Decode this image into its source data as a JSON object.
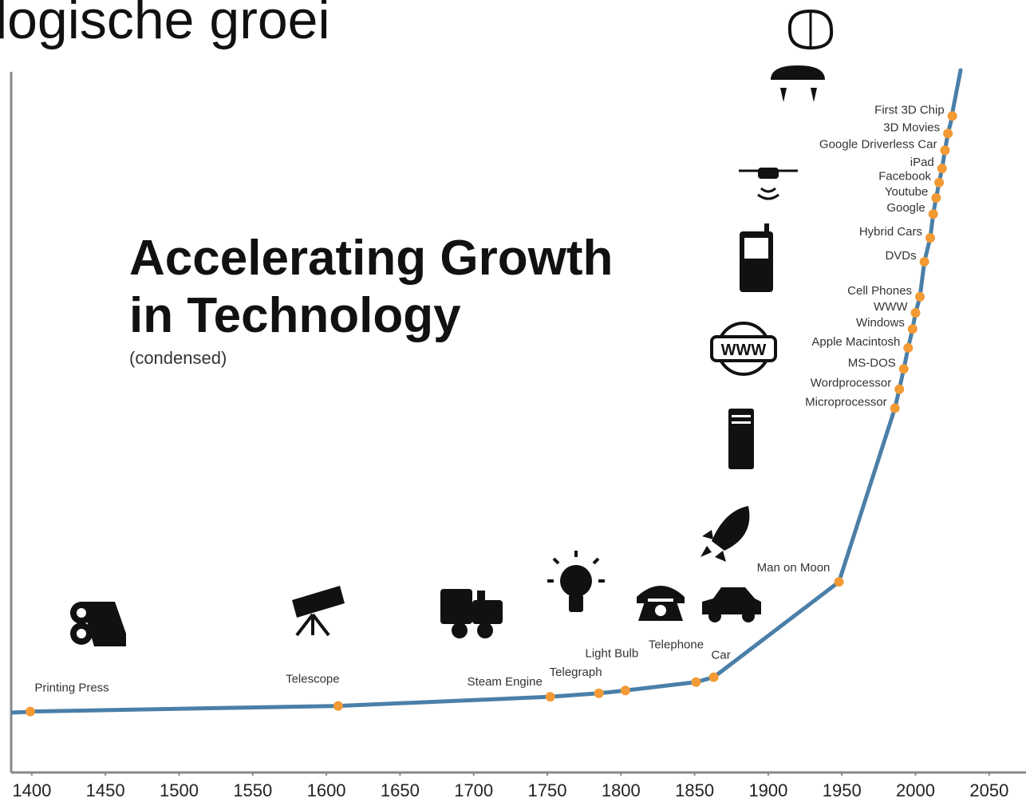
{
  "header": "logische groei",
  "chart_data": {
    "type": "line",
    "title": [
      "Accelerating Growth",
      "in Technology"
    ],
    "subtitle": "(condensed)",
    "color": "#4a7fa8",
    "marker_color": "#f39a35",
    "categories": [
      "Printing Press",
      "Telescope",
      "Steam Engine",
      "Telegraph",
      "Light Bulb",
      "Telephone",
      "Car",
      "Man on Moon",
      "Microprocessor",
      "Wordprocessor",
      "MS-DOS",
      "Apple Macintosh",
      "Windows",
      "WWW",
      "Cell Phones",
      "DVDs",
      "Hybrid Cars",
      "Google",
      "Youtube",
      "Facebook",
      "iPad",
      "Google Driverless Car",
      "3D Movies",
      "First 3D Chip"
    ],
    "x": [
      1399,
      1608,
      1752,
      1785,
      1803,
      1851,
      1863,
      1948,
      1986,
      1989,
      1992,
      1995,
      1998,
      2000,
      2003,
      2006,
      2010,
      2012,
      2014,
      2016,
      2018,
      2020,
      2022,
      2025
    ],
    "values": [
      8.7,
      9.5,
      10.8,
      11.3,
      11.7,
      12.9,
      13.6,
      27.2,
      52.0,
      54.7,
      57.6,
      60.6,
      63.3,
      65.6,
      67.9,
      72.9,
      76.3,
      79.7,
      82.0,
      84.2,
      86.2,
      88.8,
      91.2,
      93.7
    ],
    "xlim": [
      1386,
      2075
    ],
    "ylim": [
      0,
      100
    ],
    "xticks": [
      1400,
      1450,
      1500,
      1550,
      1600,
      1650,
      1700,
      1750,
      1800,
      1850,
      1900,
      1950,
      2000,
      2050
    ]
  }
}
